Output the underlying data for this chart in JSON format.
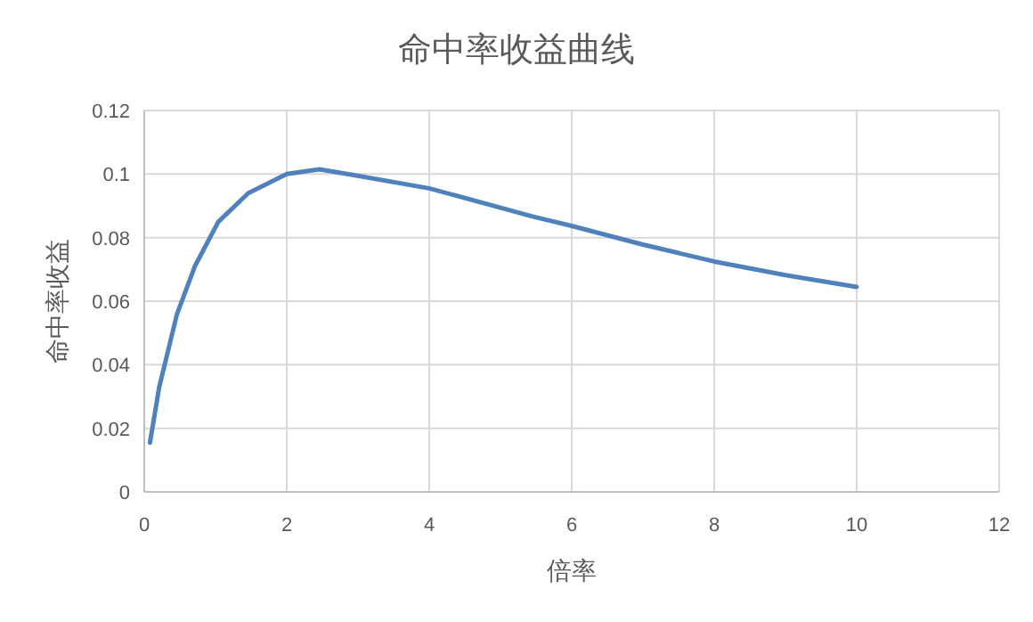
{
  "chart_data": {
    "type": "line",
    "title": "命中率收益曲线",
    "xlabel": "倍率",
    "ylabel": "命中率收益",
    "xlim": [
      0,
      12
    ],
    "xticks": [
      0,
      2,
      4,
      6,
      8,
      10,
      12
    ],
    "ylim": [
      0,
      0.12
    ],
    "yticks": [
      0,
      0.02,
      0.04,
      0.06,
      0.08,
      0.1,
      0.12
    ],
    "grid": true,
    "marker": "none",
    "line_style": "solid",
    "series": [
      {
        "color": "#4f81bd",
        "x": [
          0.08,
          0.21,
          0.46,
          0.71,
          1.04,
          1.46,
          2.0,
          2.46,
          2.96,
          4.0,
          5.46,
          6.0,
          7.0,
          8.0,
          9.0,
          10.0
        ],
        "values": [
          0.0155,
          0.033,
          0.056,
          0.071,
          0.085,
          0.094,
          0.1,
          0.1015,
          0.0996,
          0.0955,
          0.0866,
          0.0837,
          0.0778,
          0.0725,
          0.0682,
          0.0645
        ]
      }
    ]
  }
}
